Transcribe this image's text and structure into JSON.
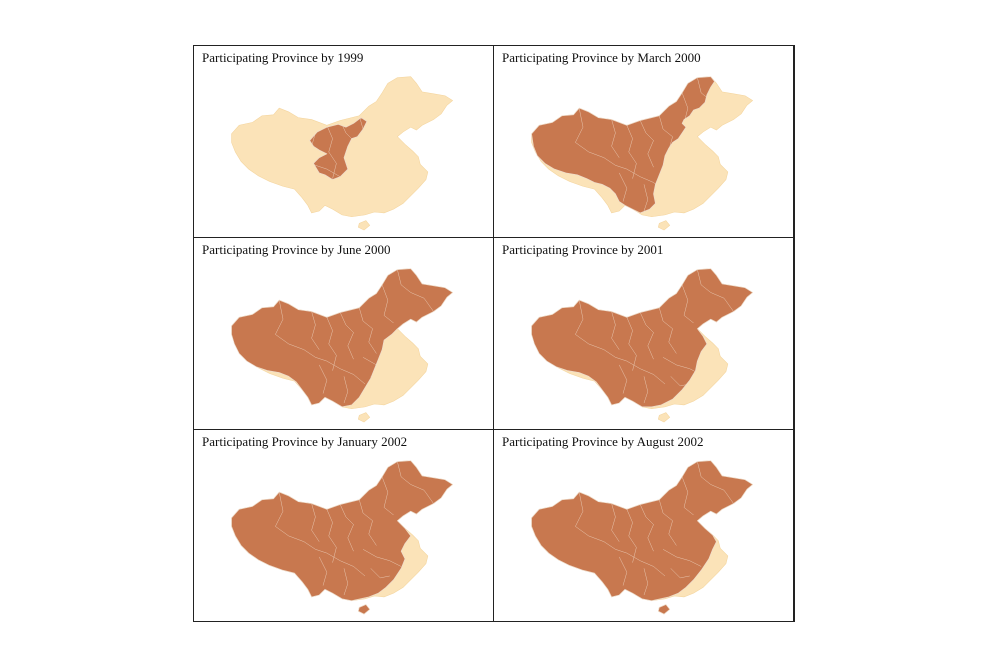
{
  "colors": {
    "participating": "#c8784f",
    "non_participating": "#fbe3b8"
  },
  "panels": [
    {
      "title": "Participating Province by 1999",
      "stage": 1
    },
    {
      "title": "Participating Province by March 2000",
      "stage": 2
    },
    {
      "title": "Participating Province by June 2000",
      "stage": 3
    },
    {
      "title": "Participating Province by 2001",
      "stage": 4
    },
    {
      "title": "Participating Province by January 2002",
      "stage": 5
    },
    {
      "title": "Participating Province by August 2002",
      "stage": 6
    }
  ]
}
